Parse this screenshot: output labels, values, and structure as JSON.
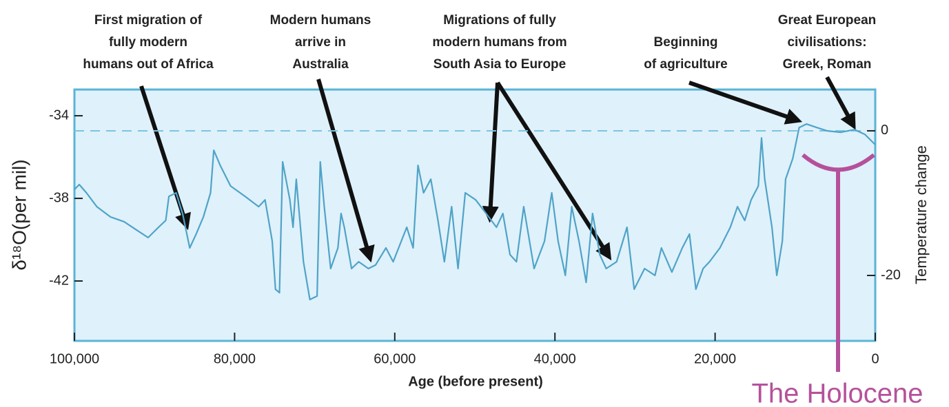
{
  "chart_data": {
    "type": "line",
    "x_label": "Age (before present)",
    "y_label": "δ¹⁸O(per mil)",
    "y2_label": "Temperature change",
    "xlim": [
      100000,
      0
    ],
    "xticks": [
      {
        "value": 100000,
        "label": "100,000"
      },
      {
        "value": 80000,
        "label": "80,000"
      },
      {
        "value": 60000,
        "label": "60,000"
      },
      {
        "value": 40000,
        "label": "40,000"
      },
      {
        "value": 20000,
        "label": "20,000"
      },
      0
    ],
    "ylim": [
      -44.9,
      -32.73
    ],
    "yticks": [
      -34,
      -38,
      -42
    ],
    "y2lim": [
      -29.05,
      5.71
    ],
    "y2ticks": [
      0,
      -20
    ],
    "dashed_zero_line": true,
    "background": "#dff1fa",
    "x": [
      100000,
      99400,
      98500,
      97200,
      95500,
      93800,
      92100,
      90800,
      89500,
      88600,
      88200,
      87300,
      86500,
      85600,
      84800,
      83900,
      83000,
      82600,
      81800,
      80500,
      78700,
      77000,
      76200,
      75300,
      74900,
      74400,
      74000,
      73100,
      72700,
      72300,
      71400,
      70600,
      69700,
      69300,
      68800,
      68000,
      67100,
      66700,
      66300,
      65400,
      64500,
      63300,
      62400,
      61100,
      60200,
      58500,
      57700,
      57100,
      56400,
      55500,
      54600,
      53800,
      52900,
      52100,
      51200,
      49900,
      48600,
      47300,
      46500,
      45600,
      44800,
      43900,
      42600,
      41300,
      40400,
      39600,
      38700,
      37900,
      37000,
      36100,
      35300,
      34400,
      33600,
      32300,
      31000,
      30100,
      28800,
      27500,
      26700,
      25400,
      24100,
      23200,
      22400,
      21500,
      20700,
      19400,
      18100,
      17200,
      16300,
      15500,
      14600,
      14200,
      13800,
      12900,
      12300,
      11600,
      11200,
      10300,
      9500,
      8600,
      7300,
      6000,
      4300,
      2600,
      1300,
      0
    ],
    "series": [
      {
        "color": "#4fa3c8",
        "values": [
          -37.57,
          -37.33,
          -37.73,
          -38.4,
          -38.9,
          -39.13,
          -39.57,
          -39.9,
          -39.4,
          -39.07,
          -37.9,
          -37.73,
          -38.73,
          -40.4,
          -39.73,
          -38.9,
          -37.73,
          -35.67,
          -36.4,
          -37.4,
          -37.9,
          -38.4,
          -38.07,
          -40.07,
          -42.4,
          -42.57,
          -36.23,
          -38.07,
          -39.4,
          -37.07,
          -41.07,
          -42.9,
          -42.73,
          -36.23,
          -38.4,
          -41.4,
          -40.4,
          -38.73,
          -39.4,
          -41.4,
          -41.07,
          -41.4,
          -41.23,
          -40.4,
          -41.07,
          -39.4,
          -40.4,
          -36.4,
          -37.73,
          -37.07,
          -39.07,
          -41.07,
          -38.4,
          -41.4,
          -37.73,
          -38.07,
          -38.73,
          -39.4,
          -38.73,
          -40.73,
          -41.07,
          -38.4,
          -41.4,
          -40.07,
          -37.73,
          -40.07,
          -41.73,
          -38.4,
          -40.07,
          -42.07,
          -38.73,
          -40.73,
          -41.4,
          -41.07,
          -39.4,
          -42.4,
          -41.4,
          -41.73,
          -40.4,
          -41.57,
          -40.4,
          -39.73,
          -42.4,
          -41.4,
          -41.07,
          -40.4,
          -39.4,
          -38.4,
          -39.07,
          -38.07,
          -37.4,
          -35.07,
          -37.07,
          -39.4,
          -41.73,
          -40.07,
          -37.07,
          -36.07,
          -34.57,
          -34.4,
          -34.57,
          -34.73,
          -34.8,
          -34.67,
          -34.9,
          -35.4
        ]
      }
    ],
    "annotations": [
      {
        "lines": [
          "First migration of",
          "fully modern",
          "humans out of Africa"
        ]
      },
      {
        "lines": [
          "Modern humans",
          "arrive in",
          "Australia"
        ]
      },
      {
        "lines": [
          "Migrations of fully",
          "modern humans from",
          "South Asia to Europe"
        ]
      },
      {
        "lines": [
          "Beginning",
          "of agriculture"
        ]
      },
      {
        "lines": [
          "Great European",
          "civilisations:",
          "Greek, Roman"
        ]
      },
      {
        "lines": [
          "The Holocene"
        ]
      }
    ]
  }
}
